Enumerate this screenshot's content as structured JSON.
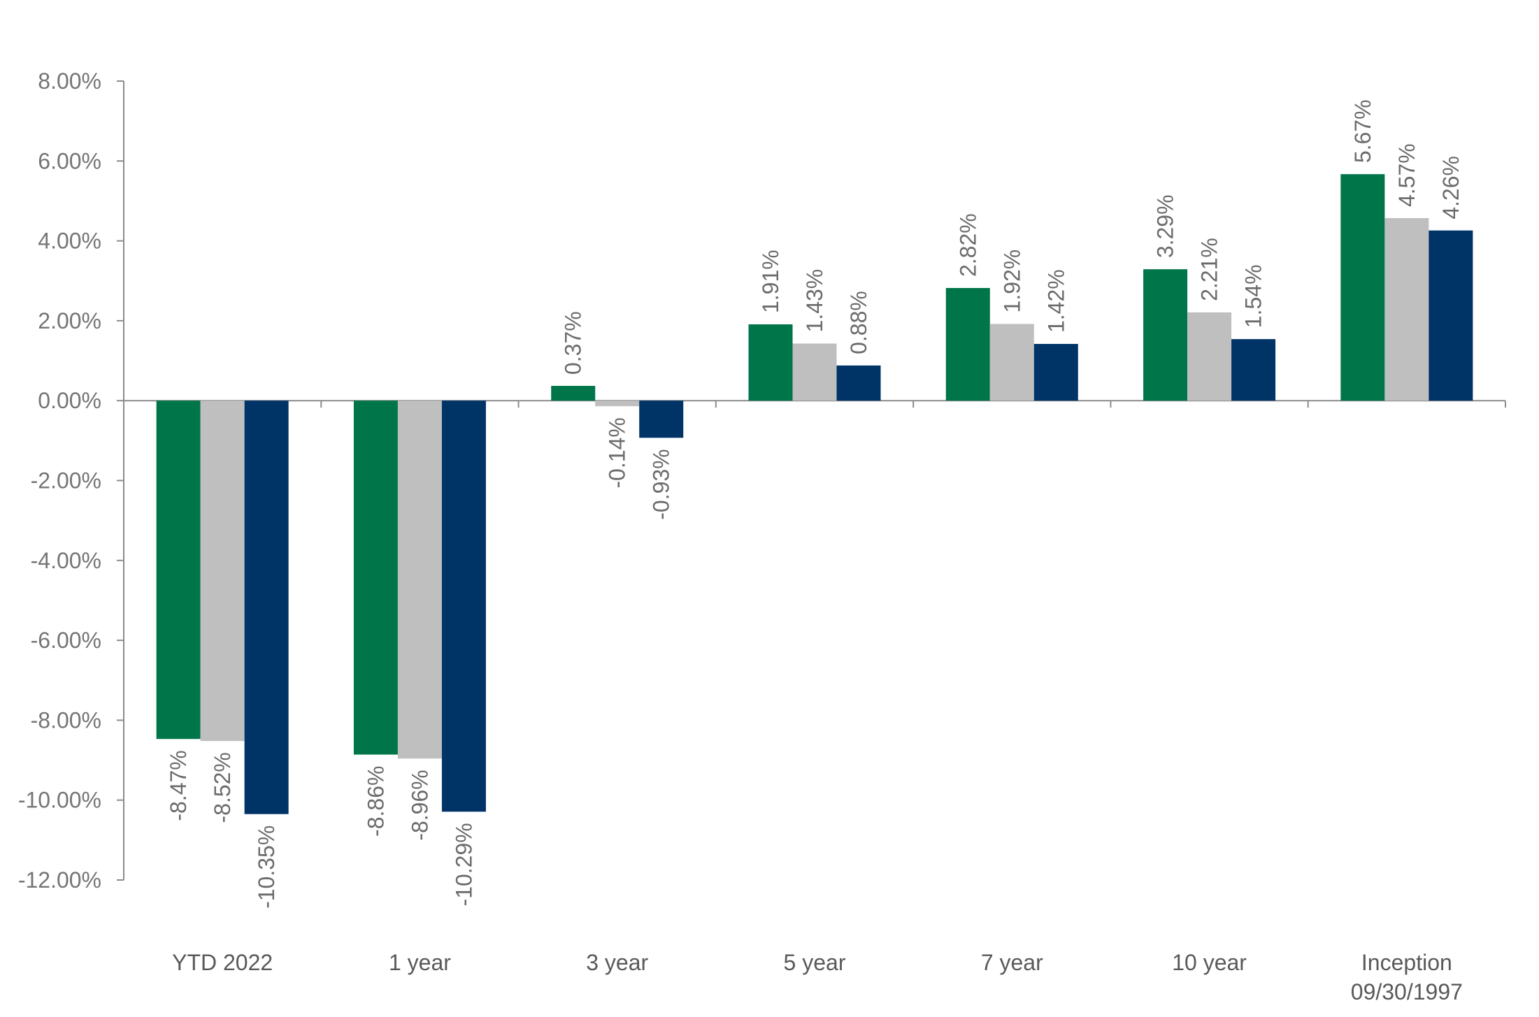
{
  "chart_data": {
    "type": "bar",
    "title": "",
    "xlabel": "",
    "ylabel": "",
    "ylim": [
      -12,
      8
    ],
    "y_ticks": [
      8,
      6,
      4,
      2,
      0,
      -2,
      -4,
      -6,
      -8,
      -10,
      -12
    ],
    "y_tick_labels": [
      "8.00%",
      "6.00%",
      "4.00%",
      "2.00%",
      "0.00%",
      "-2.00%",
      "-4.00%",
      "-6.00%",
      "-8.00%",
      "-10.00%",
      "-12.00%"
    ],
    "grid": false,
    "legend": "none",
    "categories": [
      [
        "YTD 2022"
      ],
      [
        "1 year"
      ],
      [
        "3 year"
      ],
      [
        "5 year"
      ],
      [
        "7 year"
      ],
      [
        "10 year"
      ],
      [
        "Inception",
        "09/30/1997"
      ]
    ],
    "series": [
      {
        "color": "#00754a",
        "values": [
          -8.47,
          -8.86,
          0.37,
          1.91,
          2.82,
          3.29,
          5.67
        ],
        "labels": [
          "-8.47%",
          "-8.86%",
          "0.37%",
          "1.91%",
          "2.82%",
          "3.29%",
          "5.67%"
        ]
      },
      {
        "color": "#bfbfbf",
        "values": [
          -8.52,
          -8.96,
          -0.14,
          1.43,
          1.92,
          2.21,
          4.57
        ],
        "labels": [
          "-8.52%",
          "-8.96%",
          "-0.14%",
          "1.43%",
          "1.92%",
          "2.21%",
          "4.57%"
        ]
      },
      {
        "color": "#003366",
        "values": [
          -10.35,
          -10.29,
          -0.93,
          0.88,
          1.42,
          1.54,
          4.26
        ],
        "labels": [
          "-10.35%",
          "-10.29%",
          "-0.93%",
          "0.88%",
          "1.42%",
          "1.54%",
          "4.26%"
        ]
      }
    ],
    "axis_color": "#8c8c8c"
  }
}
